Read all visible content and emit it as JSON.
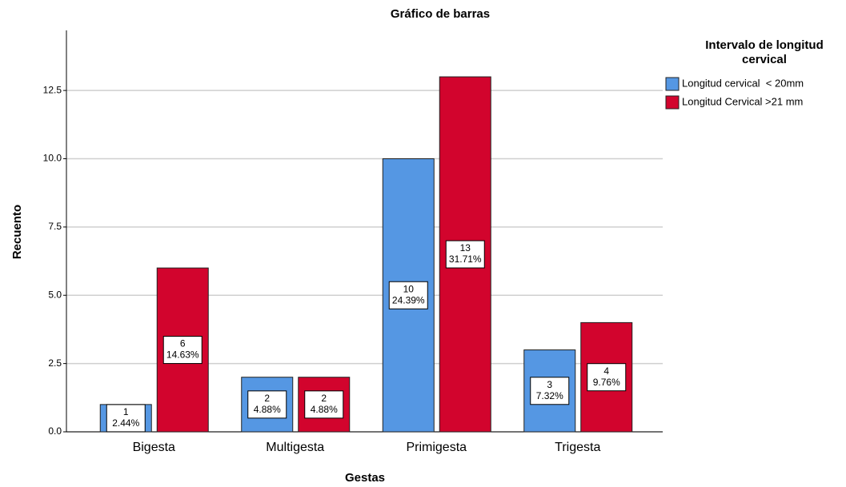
{
  "chart_data": {
    "type": "bar",
    "title": "Gráfico de barras",
    "xlabel": "Gestas",
    "ylabel": "Recuento",
    "legend_title": [
      "Intervalo de longitud",
      "cervical"
    ],
    "legend_position": "right",
    "categories": [
      "Bigesta",
      "Multigesta",
      "Primigesta",
      "Trigesta"
    ],
    "series": [
      {
        "name": "Longitud cervical  < 20mm",
        "color": "#5597e3",
        "values": [
          1,
          2,
          10,
          3
        ],
        "percent_labels": [
          "2.44%",
          "4.88%",
          "24.39%",
          "7.32%"
        ]
      },
      {
        "name": "Longitud Cervical >21 mm",
        "color": "#d2042d",
        "values": [
          6,
          2,
          13,
          4
        ],
        "percent_labels": [
          "14.63%",
          "4.88%",
          "31.71%",
          "9.76%"
        ]
      }
    ],
    "ylim": [
      0,
      14.7
    ],
    "yticks": [
      {
        "value": 0,
        "label": "0.0"
      },
      2.5,
      {
        "value": 5,
        "label": "5.0"
      },
      7.5,
      {
        "value": 10,
        "label": "10.0"
      },
      12.5
    ],
    "grid": true
  }
}
